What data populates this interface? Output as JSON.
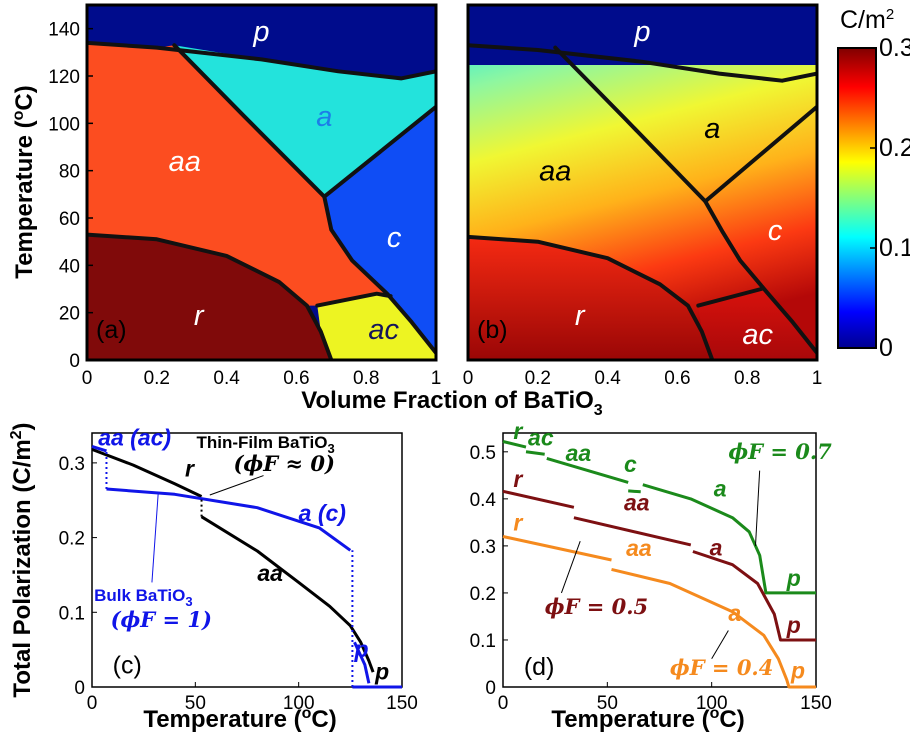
{
  "colors": {
    "p": "#000c8c",
    "a": "#23e3dc",
    "aa": "#fc4d20",
    "c": "#0f4df5",
    "r": "#800a0a",
    "ac": "#edf422",
    "boundary": "#111111",
    "blue": "#1015e8",
    "black": "#000000",
    "green": "#1b8a1b",
    "darkred": "#7d1012",
    "orange": "#f58a1e"
  },
  "colorbar": {
    "unit": "C/m",
    "unit_sup": "2",
    "ticks": [
      "0.3",
      "0.2",
      "0.1",
      "0"
    ]
  },
  "panel_labels": [
    "(a)",
    "(b)",
    "(c)",
    "(d)"
  ],
  "top_axes": {
    "ylabel": "Temperature (",
    "ylabel_sup": "o",
    "ylabel_end": "C)",
    "yticks": [
      "140",
      "120",
      "100",
      "80",
      "60",
      "40",
      "20",
      "0"
    ],
    "xticks": [
      "0",
      "0.2",
      "0.4",
      "0.6",
      "0.8",
      "1"
    ],
    "xlabel": "Volume Fraction of BaTiO",
    "xlabel_sub": "3"
  },
  "bottom_axes": {
    "ylabel": "Total Polarization (C/m",
    "ylabel_sup": "2",
    "ylabel_end": ")",
    "xlabel": "Temperature (",
    "xlabel_sup": "o",
    "xlabel_end": "C)",
    "xticks": [
      "0",
      "50",
      "100",
      "150"
    ],
    "c_yticks": [
      "0.3",
      "0.2",
      "0.1",
      "0"
    ],
    "d_yticks": [
      "0.5",
      "0.4",
      "0.3",
      "0.2",
      "0.1",
      "0"
    ]
  },
  "chart_data": [
    {
      "panel": "(a)",
      "type": "heatmap",
      "x_range": [
        0,
        1
      ],
      "y_range": [
        0,
        150
      ],
      "regions": [
        {
          "label": "p",
          "x": 0.5,
          "y": 139
        },
        {
          "label": "a",
          "x": 0.68,
          "y": 103
        },
        {
          "label": "aa",
          "x": 0.28,
          "y": 84
        },
        {
          "label": "c",
          "x": 0.88,
          "y": 52
        },
        {
          "label": "r",
          "x": 0.32,
          "y": 19
        },
        {
          "label": "ac",
          "x": 0.85,
          "y": 13
        }
      ],
      "boundaries": [
        [
          [
            0,
            134
          ],
          [
            0.2,
            132
          ],
          [
            0.5,
            127
          ],
          [
            0.72,
            122
          ],
          [
            0.9,
            119
          ],
          [
            1,
            122
          ]
        ],
        [
          [
            0.25,
            133
          ],
          [
            0.45,
            103
          ],
          [
            0.68,
            69
          ],
          [
            1,
            107
          ]
        ],
        [
          [
            0.68,
            69
          ],
          [
            0.7,
            55
          ],
          [
            0.76,
            42
          ],
          [
            0.86,
            28
          ],
          [
            0.93,
            16
          ],
          [
            1,
            3
          ]
        ],
        [
          [
            0,
            53
          ],
          [
            0.2,
            51
          ],
          [
            0.4,
            44
          ],
          [
            0.55,
            33
          ],
          [
            0.63,
            23
          ],
          [
            0.67,
            12
          ],
          [
            0.7,
            0
          ]
        ],
        [
          [
            0.66,
            23
          ],
          [
            0.83,
            28
          ],
          [
            0.87,
            27
          ]
        ]
      ]
    },
    {
      "panel": "(b)",
      "type": "heatmap",
      "x_range": [
        0,
        1
      ],
      "y_range": [
        0,
        150
      ],
      "color_range": [
        0,
        0.3
      ],
      "regions": [
        {
          "label": "p",
          "x": 0.5,
          "y": 139
        },
        {
          "label": "a",
          "x": 0.7,
          "y": 98
        },
        {
          "label": "aa",
          "x": 0.25,
          "y": 80
        },
        {
          "label": "c",
          "x": 0.88,
          "y": 55
        },
        {
          "label": "r",
          "x": 0.32,
          "y": 19
        },
        {
          "label": "ac",
          "x": 0.83,
          "y": 11
        }
      ],
      "boundaries": [
        [
          [
            0,
            133
          ],
          [
            0.2,
            131
          ],
          [
            0.5,
            126
          ],
          [
            0.72,
            121
          ],
          [
            0.9,
            118
          ],
          [
            1,
            121
          ]
        ],
        [
          [
            0.25,
            132
          ],
          [
            0.45,
            102
          ],
          [
            0.68,
            67
          ],
          [
            1,
            107
          ]
        ],
        [
          [
            0.68,
            67
          ],
          [
            0.73,
            54
          ],
          [
            0.78,
            42
          ],
          [
            0.86,
            28
          ],
          [
            0.93,
            16
          ],
          [
            1,
            3
          ]
        ],
        [
          [
            0,
            52
          ],
          [
            0.2,
            50
          ],
          [
            0.4,
            43
          ],
          [
            0.55,
            32
          ],
          [
            0.63,
            23
          ],
          [
            0.67,
            12
          ],
          [
            0.7,
            0
          ]
        ],
        [
          [
            0.66,
            23
          ],
          [
            0.84,
            30
          ]
        ]
      ]
    },
    {
      "panel": "(c)",
      "type": "line",
      "x_range": [
        0,
        150
      ],
      "y_range": [
        0,
        0.34
      ],
      "series": [
        {
          "name": "Thin-Film BaTiO",
          "color": "black",
          "segments": [
            [
              [
                0,
                0.318
              ],
              [
                20,
                0.297
              ],
              [
                40,
                0.272
              ],
              [
                53,
                0.255
              ]
            ],
            [
              [
                53,
                0.228
              ],
              [
                80,
                0.182
              ],
              [
                100,
                0.14
              ],
              [
                115,
                0.108
              ],
              [
                125,
                0.082
              ],
              [
                130,
                0.06
              ],
              [
                134,
                0.035
              ],
              [
                136,
                0.02
              ]
            ]
          ]
        },
        {
          "name": "Bulk BaTiO",
          "color": "blue",
          "segments": [
            [
              [
                0,
                0.322
              ],
              [
                7,
                0.316
              ]
            ],
            [
              [
                7,
                0.265
              ],
              [
                40,
                0.258
              ],
              [
                80,
                0.24
              ],
              [
                110,
                0.213
              ],
              [
                125,
                0.183
              ]
            ],
            [
              [
                127,
                0.06
              ],
              [
                132,
                0.03
              ],
              [
                134,
                0.005
              ]
            ],
            [
              [
                126,
                0
              ],
              [
                150,
                0
              ]
            ]
          ]
        }
      ],
      "annotations": {
        "aa_ac": "aa (ac)",
        "r": "r",
        "thin_film": "Thin-Film BaTiO",
        "thin_film_sub": "3",
        "thin_phi": "(ϕF ≈ 0)",
        "a_c": "a (c)",
        "bulk": "Bulk BaTiO",
        "bulk_sub": "3",
        "bulk_phi": "(ϕF = 1)",
        "aa": "aa",
        "p_blue": "p",
        "p_black": "p"
      }
    },
    {
      "panel": "(d)",
      "type": "line",
      "x_range": [
        0,
        150
      ],
      "y_range": [
        0,
        0.54
      ],
      "series": [
        {
          "name": "ϕF = 0.7",
          "color": "green",
          "segments": [
            [
              [
                0,
                0.522
              ],
              [
                11,
                0.51
              ]
            ],
            [
              [
                11,
                0.5
              ],
              [
                20,
                0.495
              ]
            ],
            [
              [
                21,
                0.486
              ],
              [
                60,
                0.435
              ]
            ],
            [
              [
                60,
                0.417
              ],
              [
                66,
                0.415
              ]
            ],
            [
              [
                67,
                0.43
              ],
              [
                90,
                0.4
              ],
              [
                110,
                0.36
              ],
              [
                118,
                0.33
              ],
              [
                123,
                0.28
              ],
              [
                126,
                0.2
              ],
              [
                150,
                0.2
              ]
            ]
          ]
        },
        {
          "name": "ϕF = 0.5",
          "color": "darkred",
          "segments": [
            [
              [
                0,
                0.416
              ],
              [
                34,
                0.382
              ]
            ],
            [
              [
                34,
                0.36
              ],
              [
                90,
                0.302
              ]
            ],
            [
              [
                91,
                0.288
              ],
              [
                110,
                0.26
              ],
              [
                122,
                0.22
              ],
              [
                130,
                0.155
              ],
              [
                133,
                0.1
              ],
              [
                150,
                0.1
              ]
            ]
          ]
        },
        {
          "name": "ϕF = 0.4",
          "color": "orange",
          "segments": [
            [
              [
                0,
                0.32
              ],
              [
                52,
                0.27
              ]
            ],
            [
              [
                52,
                0.25
              ],
              [
                80,
                0.22
              ],
              [
                110,
                0.16
              ],
              [
                125,
                0.11
              ],
              [
                132,
                0.06
              ],
              [
                136,
                0.015
              ],
              [
                137,
                0
              ],
              [
                150,
                0
              ]
            ]
          ]
        }
      ],
      "annotations": {
        "g_r": "r",
        "g_ac": "ac",
        "g_aa": "aa",
        "g_c": "c",
        "g_a": "a",
        "g_phi": "ϕF = 0.7",
        "g_p": "p",
        "r_r": "r",
        "r_aa": "aa",
        "r_a": "a",
        "r_phi": "ϕF = 0.5",
        "r_p": "p",
        "o_r": "r",
        "o_aa": "aa",
        "o_a": "a",
        "o_phi": "ϕF = 0.4",
        "o_p": "p"
      }
    }
  ]
}
